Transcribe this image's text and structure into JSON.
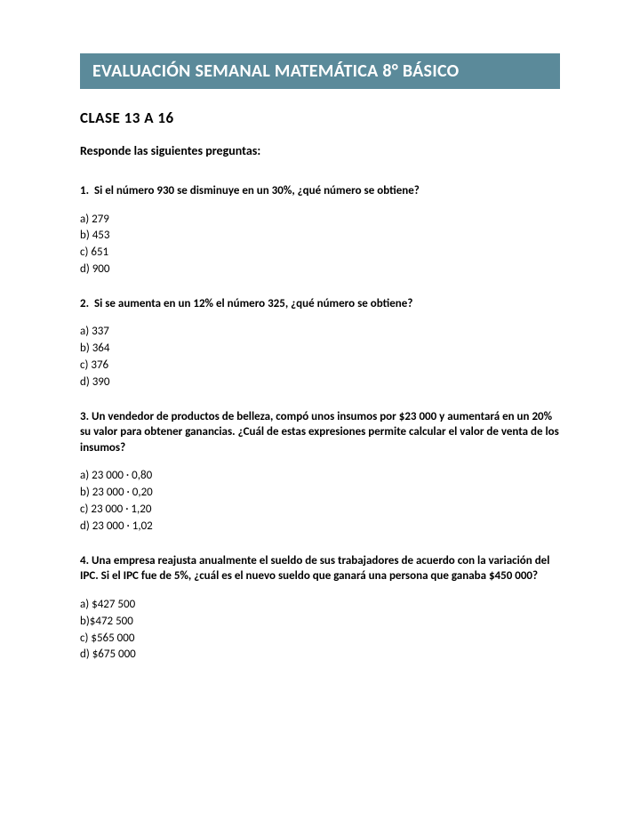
{
  "header": {
    "title": "EVALUACIÓN SEMANAL MATEMÁTICA 8° BÁSICO",
    "banner_color": "#5b8a9a",
    "text_color": "#ffffff"
  },
  "subtitle": "CLASE 13 A 16",
  "instructions": "Responde las siguientes preguntas:",
  "questions": [
    {
      "number": "1.",
      "text": "Si el número 930 se disminuye en un 30%, ¿qué número se obtiene?",
      "options": [
        "a) 279",
        "b) 453",
        "c) 651",
        "d) 900"
      ]
    },
    {
      "number": "2.",
      "text": "Si se aumenta en un 12% el número 325, ¿qué número se obtiene?",
      "options": [
        "a) 337",
        "b) 364",
        "c) 376",
        "d) 390"
      ]
    },
    {
      "number": "3.",
      "text": "Un vendedor de productos de belleza, compó unos insumos por $23 000 y aumentará en un 20% su valor para obtener ganancias. ¿Cuál de estas expresiones permite calcular el valor de venta de los insumos?",
      "options": [
        "a) 23 000 · 0,80",
        "b) 23 000 · 0,20",
        "c) 23 000 · 1,20",
        "d) 23 000 · 1,02"
      ]
    },
    {
      "number": "4.",
      "text": "Una empresa reajusta anualmente el sueldo de sus trabajadores de acuerdo con la variación del IPC. Si el IPC fue de 5%, ¿cuál es el nuevo sueldo que ganará una persona que ganaba $450 000?",
      "options": [
        "a) $427 500",
        "b)$472 500",
        "c) $565 000",
        "d) $675 000"
      ]
    }
  ],
  "styling": {
    "page_background": "#ffffff",
    "text_color": "#000000",
    "question_font_size": 13,
    "subtitle_font_size": 17,
    "header_font_size": 20
  }
}
